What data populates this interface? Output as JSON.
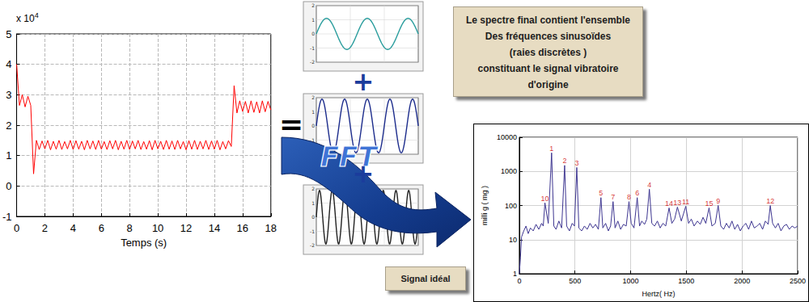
{
  "chart_data": [
    {
      "type": "line",
      "x_label": "Temps (s)",
      "y_multiplier": {
        "base": "x 10",
        "exponent": "4"
      },
      "color": "#ff0000",
      "grid": true,
      "xlim": [
        0,
        18
      ],
      "xticks": [
        0,
        2,
        4,
        6,
        8,
        10,
        12,
        14,
        16,
        18
      ],
      "ylim": [
        -1,
        5
      ],
      "yticks": [
        -1,
        0,
        1,
        2,
        3,
        4,
        5
      ],
      "x": [
        0,
        0.2,
        0.4,
        0.6,
        0.8,
        1,
        1.2,
        1.4,
        1.6,
        1.8,
        2,
        2.2,
        2.4,
        2.6,
        2.8,
        3,
        3.2,
        3.4,
        3.6,
        3.8,
        4,
        4.2,
        4.4,
        4.6,
        4.8,
        5,
        5.2,
        5.4,
        5.6,
        5.8,
        6,
        6.2,
        6.4,
        6.6,
        6.8,
        7,
        7.2,
        7.4,
        7.6,
        7.8,
        8,
        8.2,
        8.4,
        8.6,
        8.8,
        9,
        9.2,
        9.4,
        9.6,
        9.8,
        10,
        10.2,
        10.4,
        10.6,
        10.8,
        11,
        11.2,
        11.4,
        11.6,
        11.8,
        12,
        12.2,
        12.4,
        12.6,
        12.8,
        13,
        13.2,
        13.4,
        13.6,
        13.8,
        14,
        14.2,
        14.4,
        14.6,
        14.8,
        15,
        15.2,
        15.4,
        15.6,
        15.8,
        16,
        16.2,
        16.4,
        16.6,
        16.8,
        17,
        17.2,
        17.4,
        17.6,
        17.8,
        18
      ],
      "values": [
        4,
        2.65,
        3,
        2.6,
        2.95,
        2.65,
        0.4,
        1.5,
        1.2,
        1.48,
        1.22,
        1.5,
        1.19,
        1.47,
        1.21,
        1.5,
        1.2,
        1.46,
        1.22,
        1.5,
        1.2,
        1.49,
        1.21,
        1.47,
        1.19,
        1.5,
        1.22,
        1.48,
        1.2,
        1.5,
        1.21,
        1.46,
        1.2,
        1.49,
        1.22,
        1.5,
        1.19,
        1.47,
        1.21,
        1.5,
        1.2,
        1.48,
        1.22,
        1.5,
        1.2,
        1.46,
        1.21,
        1.49,
        1.19,
        1.5,
        1.22,
        1.47,
        1.2,
        1.5,
        1.21,
        1.48,
        1.2,
        1.5,
        1.22,
        1.46,
        1.19,
        1.49,
        1.21,
        1.5,
        1.2,
        1.47,
        1.22,
        1.5,
        1.2,
        1.48,
        1.21,
        1.5,
        1.19,
        1.46,
        1.22,
        1.49,
        1.3,
        3.3,
        2.4,
        2.8,
        2.45,
        2.78,
        2.4,
        2.8,
        2.42,
        2.77,
        2.4,
        2.8,
        2.44,
        2.78,
        2.5
      ]
    },
    {
      "type": "line",
      "x_label": "Hertz( Hz)",
      "y_label": "milli g ( mg )",
      "color": "#3d3590",
      "grid": true,
      "log": "y",
      "xlim": [
        0,
        2500
      ],
      "xticks": [
        0,
        500,
        1000,
        1500,
        2000,
        2500
      ],
      "ylim": [
        1,
        10000
      ],
      "yticks": [
        1,
        10,
        100,
        1000,
        10000
      ],
      "x": [
        0,
        10,
        20,
        40,
        60,
        80,
        100,
        125,
        150,
        175,
        200,
        215,
        230,
        260,
        290,
        310,
        330,
        355,
        380,
        407,
        425,
        450,
        475,
        495,
        516,
        535,
        560,
        585,
        610,
        635,
        660,
        685,
        710,
        733,
        750,
        775,
        800,
        820,
        842,
        860,
        885,
        910,
        935,
        960,
        985,
        1005,
        1030,
        1059,
        1080,
        1100,
        1125,
        1145,
        1168,
        1190,
        1215,
        1240,
        1265,
        1290,
        1315,
        1345,
        1370,
        1395,
        1420,
        1455,
        1495,
        1520,
        1545,
        1570,
        1600,
        1625,
        1650,
        1675,
        1704,
        1730,
        1760,
        1786,
        1810,
        1835,
        1860,
        1885,
        1910,
        1935,
        1960,
        1985,
        2010,
        2035,
        2060,
        2085,
        2110,
        2135,
        2160,
        2185,
        2210,
        2235,
        2254,
        2275,
        2300,
        2325,
        2350,
        2375,
        2400,
        2425,
        2450,
        2475,
        2500
      ],
      "values": [
        1,
        3,
        12,
        18,
        25,
        15,
        22,
        18,
        28,
        20,
        30,
        25,
        120,
        30,
        3500,
        25,
        20,
        35,
        22,
        1500,
        25,
        18,
        30,
        25,
        1300,
        22,
        18,
        25,
        20,
        30,
        22,
        28,
        20,
        170,
        22,
        30,
        18,
        25,
        130,
        22,
        35,
        20,
        28,
        25,
        130,
        30,
        22,
        170,
        25,
        35,
        28,
        40,
        300,
        30,
        25,
        35,
        22,
        30,
        25,
        85,
        30,
        40,
        90,
        35,
        95,
        30,
        40,
        25,
        35,
        28,
        45,
        30,
        85,
        25,
        30,
        100,
        25,
        20,
        30,
        22,
        35,
        20,
        28,
        18,
        25,
        30,
        20,
        35,
        22,
        25,
        30,
        20,
        35,
        28,
        100,
        30,
        22,
        30,
        18,
        25,
        28,
        20,
        25,
        22,
        25
      ],
      "peaks": {
        "color": "#cc0000",
        "labels": [
          "1",
          "2",
          "3",
          "4",
          "5",
          "6",
          "7",
          "8",
          "9",
          "10",
          "11",
          "12",
          "13",
          "14",
          "15"
        ],
        "x": [
          290,
          407,
          516,
          1168,
          733,
          1059,
          842,
          985,
          1786,
          230,
          1495,
          2254,
          1420,
          1345,
          1704
        ],
        "values": [
          3500,
          1500,
          1300,
          300,
          170,
          170,
          130,
          130,
          100,
          120,
          95,
          100,
          90,
          85,
          85
        ]
      }
    }
  ],
  "diagram": {
    "equals": "=",
    "plus": "+",
    "arrow_label": "FFT",
    "sine_panels": [
      {
        "color": "#2a9d9d",
        "yticks": [
          -2,
          -1,
          0,
          1,
          2
        ]
      },
      {
        "color": "#1c2c8c",
        "yticks": [
          -2,
          -1,
          0,
          1,
          2
        ]
      },
      {
        "color": "#222222",
        "yticks": [
          -2,
          -1,
          0,
          1,
          2
        ]
      }
    ],
    "note": {
      "lines": [
        "Le spectre final contient l'ensemble",
        "Des fréquences sinusoïdes",
        "(raies discrètes )",
        "constituant le signal vibratoire",
        "d'origine"
      ]
    },
    "caption": "Signal idéal"
  }
}
